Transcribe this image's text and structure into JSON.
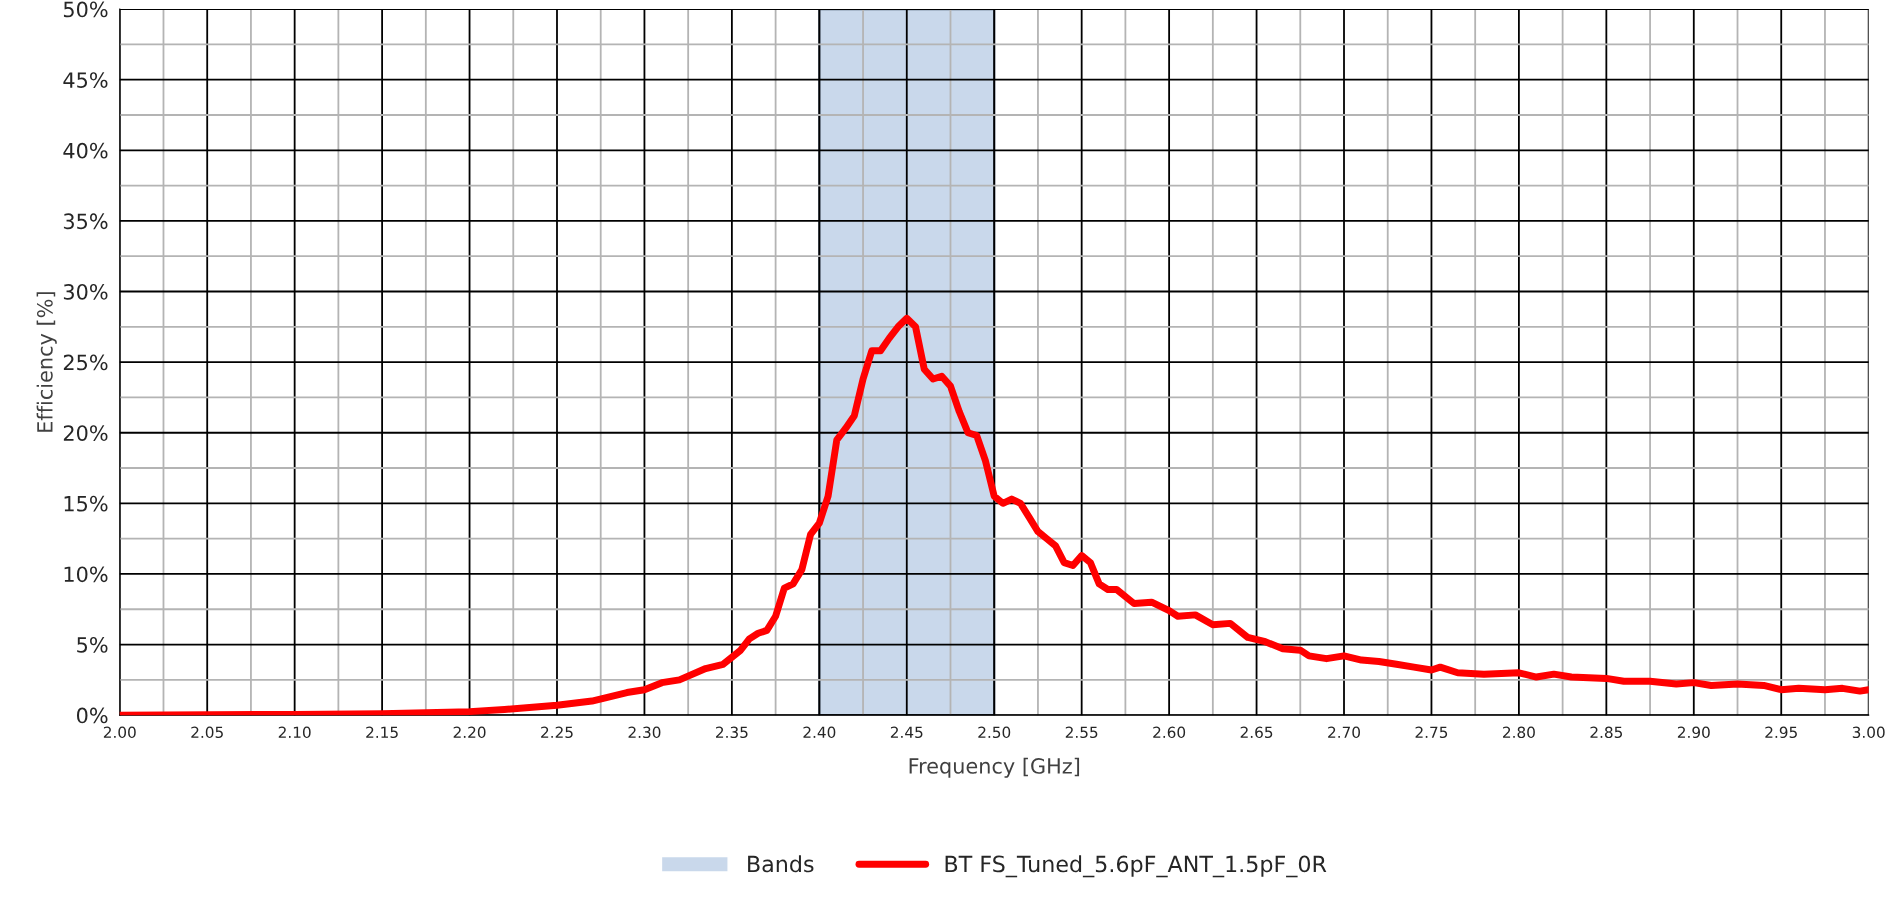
{
  "chart_data": {
    "type": "line",
    "xlabel": "Frequency [GHz]",
    "ylabel": "Efficiency [%]",
    "xlim": [
      2.0,
      3.0
    ],
    "xticks": [
      {
        "value": 2.0,
        "label": "2.00"
      },
      {
        "value": 2.025,
        "label": null
      },
      {
        "value": 2.05,
        "label": "2.05"
      },
      {
        "value": 2.075,
        "label": null
      },
      {
        "value": 2.1,
        "label": "2.10"
      },
      {
        "value": 2.125,
        "label": null
      },
      {
        "value": 2.15,
        "label": "2.15"
      },
      {
        "value": 2.175,
        "label": null
      },
      {
        "value": 2.2,
        "label": "2.20"
      },
      {
        "value": 2.225,
        "label": null
      },
      {
        "value": 2.25,
        "label": "2.25"
      },
      {
        "value": 2.275,
        "label": null
      },
      {
        "value": 2.3,
        "label": "2.30"
      },
      {
        "value": 2.325,
        "label": null
      },
      {
        "value": 2.35,
        "label": "2.35"
      },
      {
        "value": 2.375,
        "label": null
      },
      {
        "value": 2.4,
        "label": "2.40"
      },
      {
        "value": 2.425,
        "label": null
      },
      {
        "value": 2.45,
        "label": "2.45"
      },
      {
        "value": 2.475,
        "label": null
      },
      {
        "value": 2.5,
        "label": "2.50"
      },
      {
        "value": 2.525,
        "label": null
      },
      {
        "value": 2.55,
        "label": "2.55"
      },
      {
        "value": 2.575,
        "label": null
      },
      {
        "value": 2.6,
        "label": "2.60"
      },
      {
        "value": 2.625,
        "label": null
      },
      {
        "value": 2.65,
        "label": "2.65"
      },
      {
        "value": 2.675,
        "label": null
      },
      {
        "value": 2.7,
        "label": "2.70"
      },
      {
        "value": 2.725,
        "label": null
      },
      {
        "value": 2.75,
        "label": "2.75"
      },
      {
        "value": 2.775,
        "label": null
      },
      {
        "value": 2.8,
        "label": "2.80"
      },
      {
        "value": 2.825,
        "label": null
      },
      {
        "value": 2.85,
        "label": "2.85"
      },
      {
        "value": 2.875,
        "label": null
      },
      {
        "value": 2.9,
        "label": "2.90"
      },
      {
        "value": 2.925,
        "label": null
      },
      {
        "value": 2.95,
        "label": "2.95"
      },
      {
        "value": 2.975,
        "label": null
      },
      {
        "value": 3.0,
        "label": "3.00"
      }
    ],
    "ylim": [
      0,
      50
    ],
    "yticks": [
      {
        "value": 0,
        "label": "0%"
      },
      {
        "value": 2.5,
        "label": null
      },
      {
        "value": 5,
        "label": "5%"
      },
      {
        "value": 7.5,
        "label": null
      },
      {
        "value": 10,
        "label": "10%"
      },
      {
        "value": 12.5,
        "label": null
      },
      {
        "value": 15,
        "label": "15%"
      },
      {
        "value": 17.5,
        "label": null
      },
      {
        "value": 20,
        "label": "20%"
      },
      {
        "value": 22.5,
        "label": null
      },
      {
        "value": 25,
        "label": "25%"
      },
      {
        "value": 27.5,
        "label": null
      },
      {
        "value": 30,
        "label": "30%"
      },
      {
        "value": 32.5,
        "label": null
      },
      {
        "value": 35,
        "label": "35%"
      },
      {
        "value": 37.5,
        "label": null
      },
      {
        "value": 40,
        "label": "40%"
      },
      {
        "value": 42.5,
        "label": null
      },
      {
        "value": 45,
        "label": "45%"
      },
      {
        "value": 47.5,
        "label": null
      },
      {
        "value": 50,
        "label": "50%"
      }
    ],
    "grid": true,
    "legend": "bottom",
    "marker": "none",
    "line_style": "solid",
    "bands": [
      {
        "axis": "x",
        "from": 2.4,
        "to": 2.5,
        "label": "Bands",
        "color": "#c9d8eb"
      }
    ],
    "series": [
      {
        "name": "BT FS_Tuned_5.6pF_ANT_1.5pF_0R",
        "color": "#ff0000",
        "x": [
          2.0,
          2.1,
          2.15,
          2.2,
          2.22,
          2.25,
          2.27,
          2.29,
          2.3,
          2.31,
          2.32,
          2.335,
          2.345,
          2.355,
          2.36,
          2.365,
          2.37,
          2.375,
          2.38,
          2.385,
          2.39,
          2.395,
          2.4,
          2.405,
          2.41,
          2.415,
          2.42,
          2.425,
          2.43,
          2.435,
          2.44,
          2.445,
          2.45,
          2.455,
          2.46,
          2.465,
          2.47,
          2.475,
          2.48,
          2.485,
          2.49,
          2.495,
          2.5,
          2.505,
          2.51,
          2.515,
          2.52,
          2.525,
          2.53,
          2.535,
          2.54,
          2.545,
          2.55,
          2.555,
          2.56,
          2.565,
          2.57,
          2.58,
          2.59,
          2.6,
          2.605,
          2.615,
          2.625,
          2.635,
          2.645,
          2.655,
          2.665,
          2.675,
          2.68,
          2.69,
          2.7,
          2.71,
          2.72,
          2.73,
          2.74,
          2.75,
          2.755,
          2.765,
          2.78,
          2.8,
          2.81,
          2.82,
          2.83,
          2.85,
          2.86,
          2.875,
          2.89,
          2.9,
          2.91,
          2.925,
          2.94,
          2.95,
          2.96,
          2.975,
          2.985,
          2.995,
          3.0
        ],
        "values": [
          0,
          0.05,
          0.1,
          0.25,
          0.4,
          0.7,
          1.0,
          1.6,
          1.8,
          2.3,
          2.5,
          3.3,
          3.6,
          4.6,
          5.4,
          5.8,
          6.0,
          7.0,
          9.0,
          9.3,
          10.3,
          12.8,
          13.6,
          15.5,
          19.5,
          20.3,
          21.2,
          23.8,
          25.8,
          25.8,
          26.7,
          27.5,
          28.1,
          27.5,
          24.5,
          23.8,
          24.0,
          23.3,
          21.5,
          20.0,
          19.8,
          18.0,
          15.5,
          15.0,
          15.3,
          15.0,
          14.0,
          13.0,
          12.5,
          12.0,
          10.8,
          10.6,
          11.3,
          10.8,
          9.3,
          8.9,
          8.9,
          7.9,
          8.0,
          7.4,
          7.0,
          7.1,
          6.4,
          6.5,
          5.5,
          5.2,
          4.7,
          4.6,
          4.2,
          4.0,
          4.2,
          3.9,
          3.8,
          3.6,
          3.4,
          3.2,
          3.4,
          3.0,
          2.9,
          3.0,
          2.7,
          2.9,
          2.7,
          2.6,
          2.4,
          2.4,
          2.2,
          2.3,
          2.1,
          2.2,
          2.1,
          1.8,
          1.9,
          1.8,
          1.9,
          1.7,
          1.8
        ]
      }
    ]
  }
}
